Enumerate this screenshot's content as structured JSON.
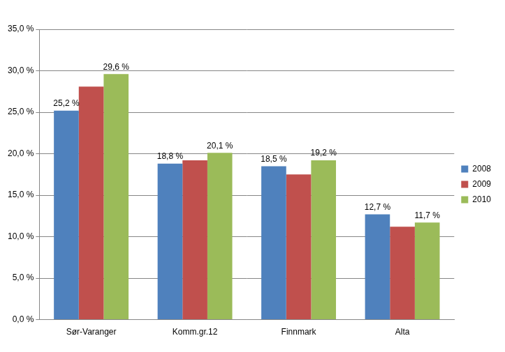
{
  "chart_data": {
    "type": "bar",
    "categories": [
      "Sør-Varanger",
      "Komm.gr.12",
      "Finnmark",
      "Alta"
    ],
    "series": [
      {
        "name": "2008",
        "color": "#4f81bd",
        "values": [
          25.2,
          18.8,
          18.5,
          12.7
        ],
        "data_labels": true,
        "value_labels": [
          "25,2 %",
          "18,8 %",
          "18,5 %",
          "12,7 %"
        ]
      },
      {
        "name": "2009",
        "color": "#c0504d",
        "values": [
          28.1,
          19.2,
          17.5,
          11.2
        ],
        "data_labels": false
      },
      {
        "name": "2010",
        "color": "#9bbb59",
        "values": [
          29.6,
          20.1,
          19.2,
          11.7
        ],
        "data_labels": true,
        "value_labels": [
          "29,6 %",
          "20,1 %",
          "19,2 %",
          "11,7 %"
        ]
      }
    ],
    "ylim": [
      0,
      35
    ],
    "yticks": [
      {
        "value": 0,
        "label": "0,0 %"
      },
      {
        "value": 5,
        "label": "5,0 %"
      },
      {
        "value": 10,
        "label": "10,0 %"
      },
      {
        "value": 15,
        "label": "15,0 %"
      },
      {
        "value": 20,
        "label": "20,0 %"
      },
      {
        "value": 25,
        "label": "25,0 %"
      },
      {
        "value": 30,
        "label": "30,0 %"
      },
      {
        "value": 35,
        "label": "35,0 %"
      }
    ],
    "grid": true,
    "legend": "right"
  }
}
